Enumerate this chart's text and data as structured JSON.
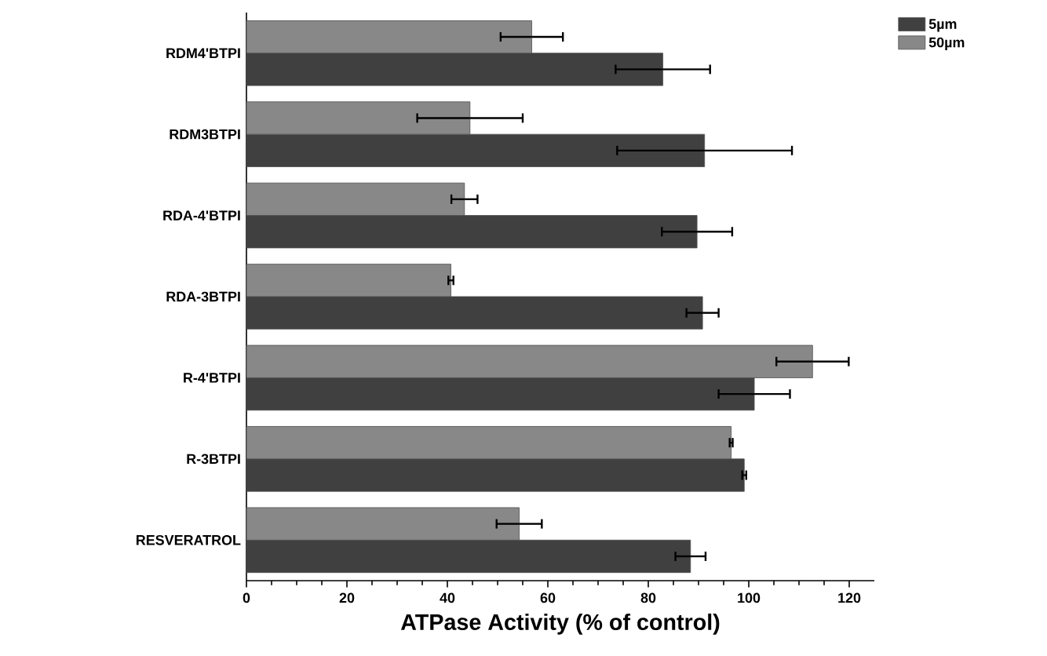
{
  "chart_data": {
    "type": "bar",
    "orientation": "horizontal",
    "xlabel": "ATPase Activity (% of control)",
    "categories": [
      "RDM4'BTPI",
      "RDM3BTPI",
      "RDA-4'BTPI",
      "RDA-3BTPI",
      "R-4'BTPI",
      "R-3BTPI",
      "RESVERATROL"
    ],
    "series": [
      {
        "name": "5µm",
        "color": "#404040",
        "values": [
          82.9,
          91.2,
          89.7,
          90.8,
          101.1,
          99.1,
          88.4
        ],
        "errors": [
          9.4,
          17.4,
          7,
          3.2,
          7.1,
          0.4,
          3
        ]
      },
      {
        "name": "50µm",
        "color": "#888888",
        "values": [
          56.8,
          44.5,
          43.4,
          40.7,
          112.7,
          96.5,
          54.3
        ],
        "errors": [
          6.2,
          10.5,
          2.6,
          0.5,
          7.2,
          0.3,
          4.5
        ]
      }
    ],
    "xlim": [
      0,
      125
    ],
    "xticks": [
      0,
      20,
      40,
      60,
      80,
      100,
      120
    ],
    "legend": "top right",
    "grid": false
  }
}
